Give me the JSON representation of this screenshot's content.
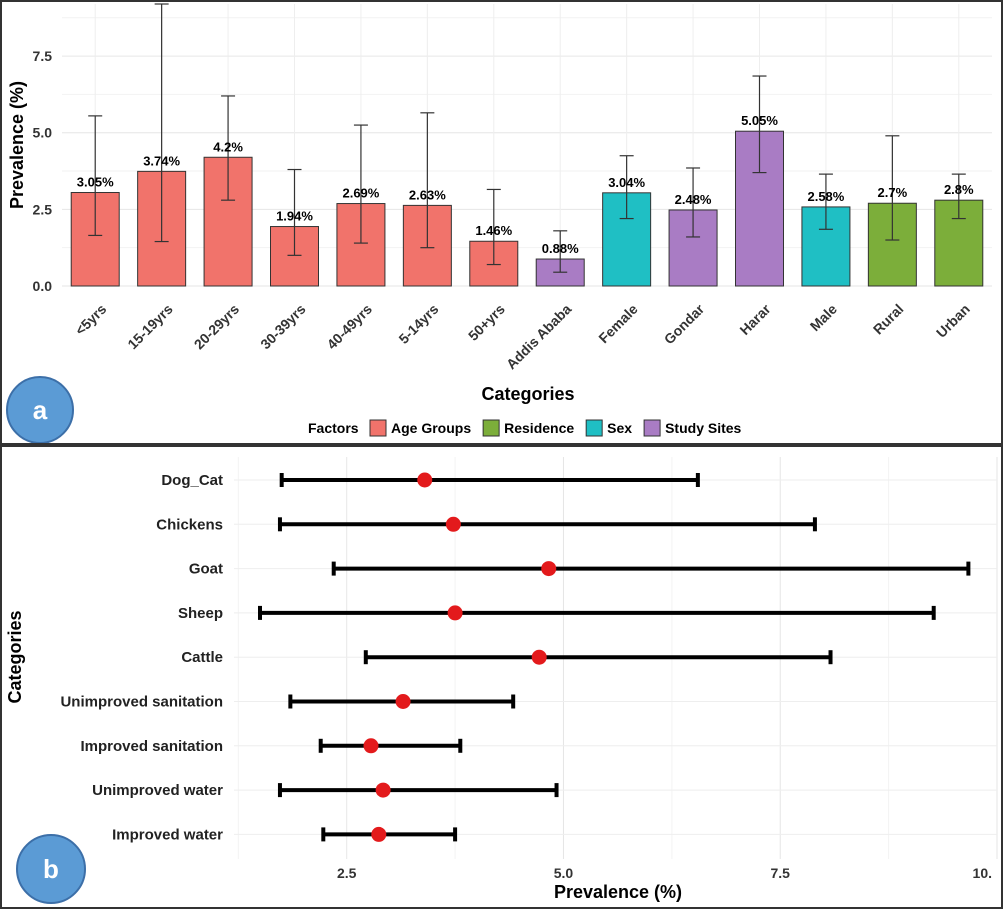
{
  "colors": {
    "age": "#F1736B",
    "residence": "#7CAE3A",
    "sex": "#1FBFC4",
    "site": "#A97CC4",
    "point": "#E31A1C",
    "badge": "#5B9BD5"
  },
  "panel_a_badge": "a",
  "panel_b_badge": "b",
  "chart_data": [
    {
      "type": "bar",
      "xlabel": "Categories",
      "ylabel": "Prevalence (%)",
      "ylim": [
        0,
        9.2
      ],
      "yticks": [
        "0.0",
        "2.5",
        "5.0",
        "7.5"
      ],
      "grid": true,
      "legend": {
        "title": "Factors",
        "position": "bottom",
        "entries": [
          {
            "name": "Age Groups",
            "color_key": "age"
          },
          {
            "name": "Residence",
            "color_key": "residence"
          },
          {
            "name": "Sex",
            "color_key": "sex"
          },
          {
            "name": "Study Sites",
            "color_key": "site"
          }
        ]
      },
      "bars": [
        {
          "category": "<5yrs",
          "value": 3.05,
          "lower": 1.65,
          "upper": 5.55,
          "label": "3.05%",
          "group": "age"
        },
        {
          "category": "15-19yrs",
          "value": 3.74,
          "lower": 1.45,
          "upper": 9.2,
          "label": "3.74%",
          "group": "age"
        },
        {
          "category": "20-29yrs",
          "value": 4.2,
          "lower": 2.8,
          "upper": 6.2,
          "label": "4.2%",
          "group": "age"
        },
        {
          "category": "30-39yrs",
          "value": 1.94,
          "lower": 1.0,
          "upper": 3.8,
          "label": "1.94%",
          "group": "age"
        },
        {
          "category": "40-49yrs",
          "value": 2.69,
          "lower": 1.4,
          "upper": 5.25,
          "label": "2.69%",
          "group": "age"
        },
        {
          "category": "5-14yrs",
          "value": 2.63,
          "lower": 1.25,
          "upper": 5.65,
          "label": "2.63%",
          "group": "age"
        },
        {
          "category": "50+yrs",
          "value": 1.46,
          "lower": 0.7,
          "upper": 3.15,
          "label": "1.46%",
          "group": "age"
        },
        {
          "category": "Addis Ababa",
          "value": 0.88,
          "lower": 0.45,
          "upper": 1.8,
          "label": "0.88%",
          "group": "site"
        },
        {
          "category": "Female",
          "value": 3.04,
          "lower": 2.2,
          "upper": 4.25,
          "label": "3.04%",
          "group": "sex"
        },
        {
          "category": "Gondar",
          "value": 2.48,
          "lower": 1.6,
          "upper": 3.85,
          "label": "2.48%",
          "group": "site"
        },
        {
          "category": "Harar",
          "value": 5.05,
          "lower": 3.7,
          "upper": 6.85,
          "label": "5.05%",
          "group": "site"
        },
        {
          "category": "Male",
          "value": 2.58,
          "lower": 1.85,
          "upper": 3.65,
          "label": "2.58%",
          "group": "sex"
        },
        {
          "category": "Rural",
          "value": 2.7,
          "lower": 1.5,
          "upper": 4.9,
          "label": "2.7%",
          "group": "residence"
        },
        {
          "category": "Urban",
          "value": 2.8,
          "lower": 2.2,
          "upper": 3.65,
          "label": "2.8%",
          "group": "residence"
        }
      ]
    },
    {
      "type": "scatter",
      "xlabel": "Prevalence (%)",
      "ylabel": "Categories",
      "xlim": [
        1.2,
        10.0
      ],
      "xticks": [
        "2.5",
        "5.0",
        "7.5",
        "10."
      ],
      "grid": true,
      "points": [
        {
          "category": "Dog_Cat",
          "value": 3.4,
          "lower": 1.75,
          "upper": 6.55
        },
        {
          "category": "Chickens",
          "value": 3.73,
          "lower": 1.73,
          "upper": 7.9
        },
        {
          "category": "Goat",
          "value": 4.83,
          "lower": 2.35,
          "upper": 9.67
        },
        {
          "category": "Sheep",
          "value": 3.75,
          "lower": 1.5,
          "upper": 9.27
        },
        {
          "category": "Cattle",
          "value": 4.72,
          "lower": 2.72,
          "upper": 8.08
        },
        {
          "category": "Unimproved sanitation",
          "value": 3.15,
          "lower": 1.85,
          "upper": 4.42
        },
        {
          "category": "Improved sanitation",
          "value": 2.78,
          "lower": 2.2,
          "upper": 3.81
        },
        {
          "category": "Unimproved water",
          "value": 2.92,
          "lower": 1.73,
          "upper": 4.92
        },
        {
          "category": "Improved water",
          "value": 2.87,
          "lower": 2.23,
          "upper": 3.75
        }
      ]
    }
  ]
}
